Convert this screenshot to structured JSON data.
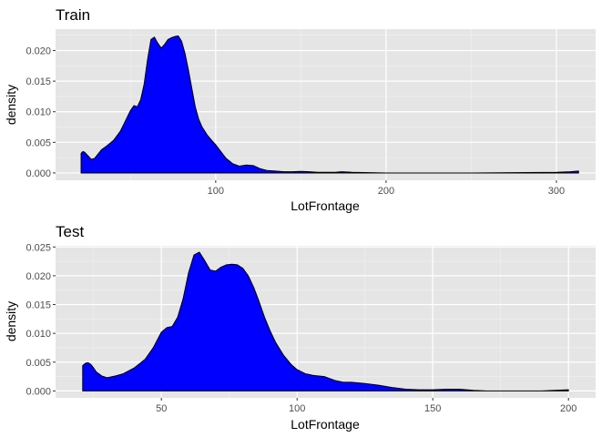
{
  "chart_data": [
    {
      "type": "area",
      "title": "Train",
      "xlabel": "LotFrontage",
      "ylabel": "density",
      "xlim": [
        6,
        323
      ],
      "ylim": [
        -0.0012,
        0.0235
      ],
      "x_ticks": [
        100,
        200,
        300
      ],
      "x_tick_labels": [
        "100",
        "200",
        "300"
      ],
      "y_ticks": [
        0.0,
        0.005,
        0.01,
        0.015,
        0.02
      ],
      "y_tick_labels": [
        "0.000",
        "0.005",
        "0.010",
        "0.015",
        "0.020"
      ],
      "grid": true,
      "fill_color": "#0000ff",
      "line_color": "#000000",
      "panel_bg": "#e5e5e5",
      "x": [
        21,
        22,
        23,
        25,
        27,
        29,
        31,
        33,
        36,
        40,
        44,
        47,
        50,
        52,
        54,
        56,
        58,
        60,
        62,
        64,
        66,
        68,
        70,
        72,
        74,
        76,
        78,
        80,
        82,
        84,
        86,
        88,
        90,
        92,
        95,
        98,
        100,
        103,
        106,
        110,
        114,
        118,
        122,
        126,
        130,
        135,
        140,
        145,
        150,
        155,
        160,
        170,
        174,
        180,
        200,
        250,
        300,
        308,
        313
      ],
      "y": [
        0.0032,
        0.0035,
        0.0034,
        0.0028,
        0.0022,
        0.0024,
        0.0031,
        0.0038,
        0.0044,
        0.0053,
        0.0068,
        0.0085,
        0.0102,
        0.011,
        0.0108,
        0.012,
        0.0145,
        0.0185,
        0.0218,
        0.0222,
        0.0212,
        0.0204,
        0.021,
        0.0218,
        0.0221,
        0.0223,
        0.0224,
        0.0215,
        0.0195,
        0.0168,
        0.0138,
        0.0108,
        0.0088,
        0.0075,
        0.0062,
        0.0052,
        0.0046,
        0.0035,
        0.0024,
        0.0015,
        0.0011,
        0.0013,
        0.0012,
        0.0007,
        0.0004,
        0.0003,
        0.0002,
        0.0002,
        0.00025,
        0.0002,
        0.0001,
        0.0001,
        0.0002,
        0.0001,
        0.0,
        0.0,
        0.0001,
        0.0002,
        0.0003
      ]
    },
    {
      "type": "area",
      "title": "Test",
      "xlabel": "LotFrontage",
      "ylabel": "density",
      "xlim": [
        11,
        210
      ],
      "ylim": [
        -0.0012,
        0.0252
      ],
      "x_ticks": [
        50,
        100,
        150,
        200
      ],
      "x_tick_labels": [
        "50",
        "100",
        "150",
        "200"
      ],
      "y_ticks": [
        0.0,
        0.005,
        0.01,
        0.015,
        0.02,
        0.025
      ],
      "y_tick_labels": [
        "0.000",
        "0.005",
        "0.010",
        "0.015",
        "0.020",
        "0.025"
      ],
      "grid": true,
      "fill_color": "#0000ff",
      "line_color": "#000000",
      "panel_bg": "#e5e5e5",
      "x": [
        21,
        22,
        23,
        24,
        25,
        26,
        28,
        30,
        33,
        36,
        40,
        44,
        47,
        50,
        52,
        54,
        56,
        58,
        60,
        62,
        64,
        66,
        68,
        70,
        72,
        74,
        76,
        78,
        80,
        82,
        84,
        86,
        88,
        90,
        92,
        95,
        98,
        100,
        103,
        106,
        110,
        114,
        117,
        120,
        125,
        130,
        135,
        140,
        145,
        150,
        155,
        160,
        165,
        170,
        180,
        190,
        195,
        200
      ],
      "y": [
        0.0044,
        0.0048,
        0.0049,
        0.0046,
        0.004,
        0.0033,
        0.0026,
        0.0023,
        0.0026,
        0.003,
        0.004,
        0.0055,
        0.0075,
        0.0102,
        0.011,
        0.0112,
        0.0128,
        0.016,
        0.0205,
        0.0236,
        0.0241,
        0.0226,
        0.021,
        0.0208,
        0.0215,
        0.0219,
        0.022,
        0.0219,
        0.0213,
        0.02,
        0.018,
        0.0155,
        0.0128,
        0.0105,
        0.0085,
        0.0062,
        0.0045,
        0.0037,
        0.003,
        0.0027,
        0.0025,
        0.0018,
        0.0015,
        0.0015,
        0.0013,
        0.001,
        0.0006,
        0.0003,
        0.0002,
        0.0002,
        0.0003,
        0.0003,
        0.0001,
        0.0,
        0.0,
        0.0,
        0.0001,
        0.0002
      ]
    }
  ]
}
